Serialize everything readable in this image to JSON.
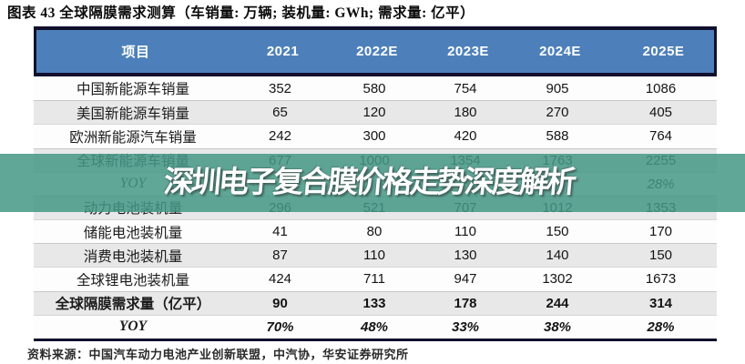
{
  "title": "图表 43 全球隔膜需求测算（车销量: 万辆; 装机量: GWh; 需求量: 亿平）",
  "watermark": {
    "text": "深圳电子复合膜价格走势深度解析",
    "band_color": "#61a698"
  },
  "table": {
    "columns": [
      "项目",
      "2021",
      "2022E",
      "2023E",
      "2024E",
      "2025E"
    ],
    "rows": [
      {
        "label": "中国新能源车销量",
        "values": [
          "352",
          "580",
          "754",
          "905",
          "1086"
        ],
        "style": "normal"
      },
      {
        "label": "美国新能源车销量",
        "values": [
          "65",
          "120",
          "180",
          "270",
          "405"
        ],
        "style": "normal"
      },
      {
        "label": "欧洲新能源汽车销量",
        "values": [
          "242",
          "300",
          "420",
          "588",
          "764"
        ],
        "style": "normal"
      },
      {
        "label": "全球新能源车销量",
        "values": [
          "677",
          "1000",
          "1354",
          "1763",
          "2255"
        ],
        "style": "normal"
      },
      {
        "label": "YOY",
        "values": [
          "",
          "",
          "",
          "",
          "28%"
        ],
        "style": "yoy"
      },
      {
        "label": "动力电池装机量",
        "values": [
          "296",
          "521",
          "707",
          "1012",
          "1353"
        ],
        "style": "normal"
      },
      {
        "label": "储能电池装机量",
        "values": [
          "41",
          "80",
          "110",
          "150",
          "170"
        ],
        "style": "normal"
      },
      {
        "label": "消费电池装机量",
        "values": [
          "87",
          "110",
          "130",
          "140",
          "150"
        ],
        "style": "normal"
      },
      {
        "label": "全球锂电池装机量",
        "values": [
          "424",
          "711",
          "947",
          "1302",
          "1673"
        ],
        "style": "normal"
      },
      {
        "label": "全球隔膜需求量（亿平）",
        "values": [
          "90",
          "133",
          "178",
          "244",
          "314"
        ],
        "style": "bold"
      },
      {
        "label": "YOY",
        "values": [
          "70%",
          "48%",
          "33%",
          "38%",
          "28%"
        ],
        "style": "yoy-bold"
      }
    ]
  },
  "source": "资料来源：中国汽车动力电池产业创新联盟，中汽协，华安证券研究所",
  "colors": {
    "header_bg": "#4d80ba",
    "rule_navy": "#10102c",
    "row_alt_bg": "#e8e8e8",
    "watermark_overlay": "rgba(68,152,134,0.85)"
  }
}
